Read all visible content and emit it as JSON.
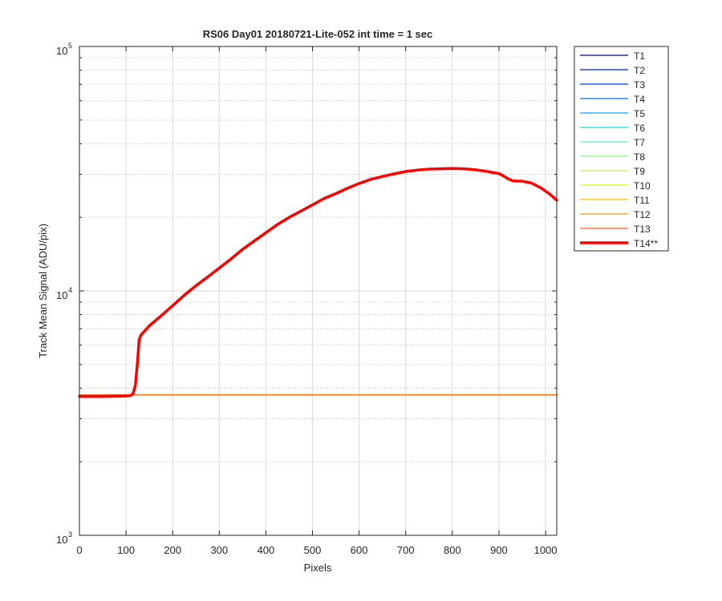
{
  "chart_data": {
    "type": "line",
    "title": "RS06 Day01 20180721-Lite-052 int time = 1 sec",
    "xlabel": "Pixels",
    "ylabel": "Track Mean Signal (ADU/pix)",
    "xlim": [
      0,
      1024
    ],
    "ylim": [
      1000,
      100000
    ],
    "yscale": "log",
    "grid": true,
    "minor_grid_y": true,
    "legend_position": "outside-top-right",
    "x_ticks": [
      "0",
      "100",
      "200",
      "300",
      "400",
      "500",
      "600",
      "700",
      "800",
      "900",
      "1000"
    ],
    "y_ticks": [
      {
        "base": "10",
        "exp": "3",
        "value": 1000
      },
      {
        "base": "10",
        "exp": "4",
        "value": 10000
      },
      {
        "base": "10",
        "exp": "5",
        "value": 100000
      }
    ],
    "series": [
      {
        "name": "T1",
        "color": "#000d8f",
        "width": 1.3,
        "flat_value": 3750
      },
      {
        "name": "T2",
        "color": "#0020c4",
        "width": 1.3,
        "flat_value": 3750
      },
      {
        "name": "T3",
        "color": "#0040e8",
        "width": 1.3,
        "flat_value": 3750
      },
      {
        "name": "T4",
        "color": "#0072ff",
        "width": 1.3,
        "flat_value": 3750
      },
      {
        "name": "T5",
        "color": "#00a6ff",
        "width": 1.3,
        "flat_value": 3750
      },
      {
        "name": "T6",
        "color": "#12dce8",
        "width": 1.3,
        "flat_value": 3750
      },
      {
        "name": "T7",
        "color": "#54f0bc",
        "width": 1.3,
        "flat_value": 3750
      },
      {
        "name": "T8",
        "color": "#8cf38c",
        "width": 1.3,
        "flat_value": 3750
      },
      {
        "name": "T9",
        "color": "#c0f050",
        "width": 1.3,
        "flat_value": 3750
      },
      {
        "name": "T10",
        "color": "#ecec1a",
        "width": 1.3,
        "flat_value": 3750
      },
      {
        "name": "T11",
        "color": "#ffc400",
        "width": 1.3,
        "flat_value": 3750
      },
      {
        "name": "T12",
        "color": "#ff9012",
        "width": 1.3,
        "flat_value": 3750
      },
      {
        "name": "T13",
        "color": "#ff5c1c",
        "width": 1.3,
        "flat_value": 3750
      },
      {
        "name": "T14**",
        "color": "#ff0000",
        "width": 3.5,
        "x": [
          0,
          50,
          100,
          110,
          115,
          120,
          125,
          128,
          132,
          140,
          150,
          175,
          200,
          225,
          250,
          275,
          300,
          325,
          350,
          375,
          400,
          425,
          450,
          475,
          500,
          525,
          550,
          575,
          600,
          625,
          650,
          675,
          700,
          725,
          750,
          775,
          800,
          825,
          850,
          875,
          900,
          910,
          920,
          930,
          950,
          970,
          990,
          1010,
          1024
        ],
        "y": [
          3700,
          3700,
          3710,
          3730,
          3800,
          4100,
          5200,
          6300,
          6600,
          6850,
          7200,
          7900,
          8700,
          9600,
          10500,
          11400,
          12400,
          13500,
          14800,
          16000,
          17300,
          18700,
          20000,
          21200,
          22500,
          23900,
          25000,
          26300,
          27500,
          28600,
          29400,
          30100,
          30800,
          31200,
          31500,
          31600,
          31700,
          31600,
          31300,
          30800,
          30200,
          29500,
          28700,
          28200,
          28100,
          27600,
          26400,
          24800,
          23500
        ]
      }
    ]
  }
}
